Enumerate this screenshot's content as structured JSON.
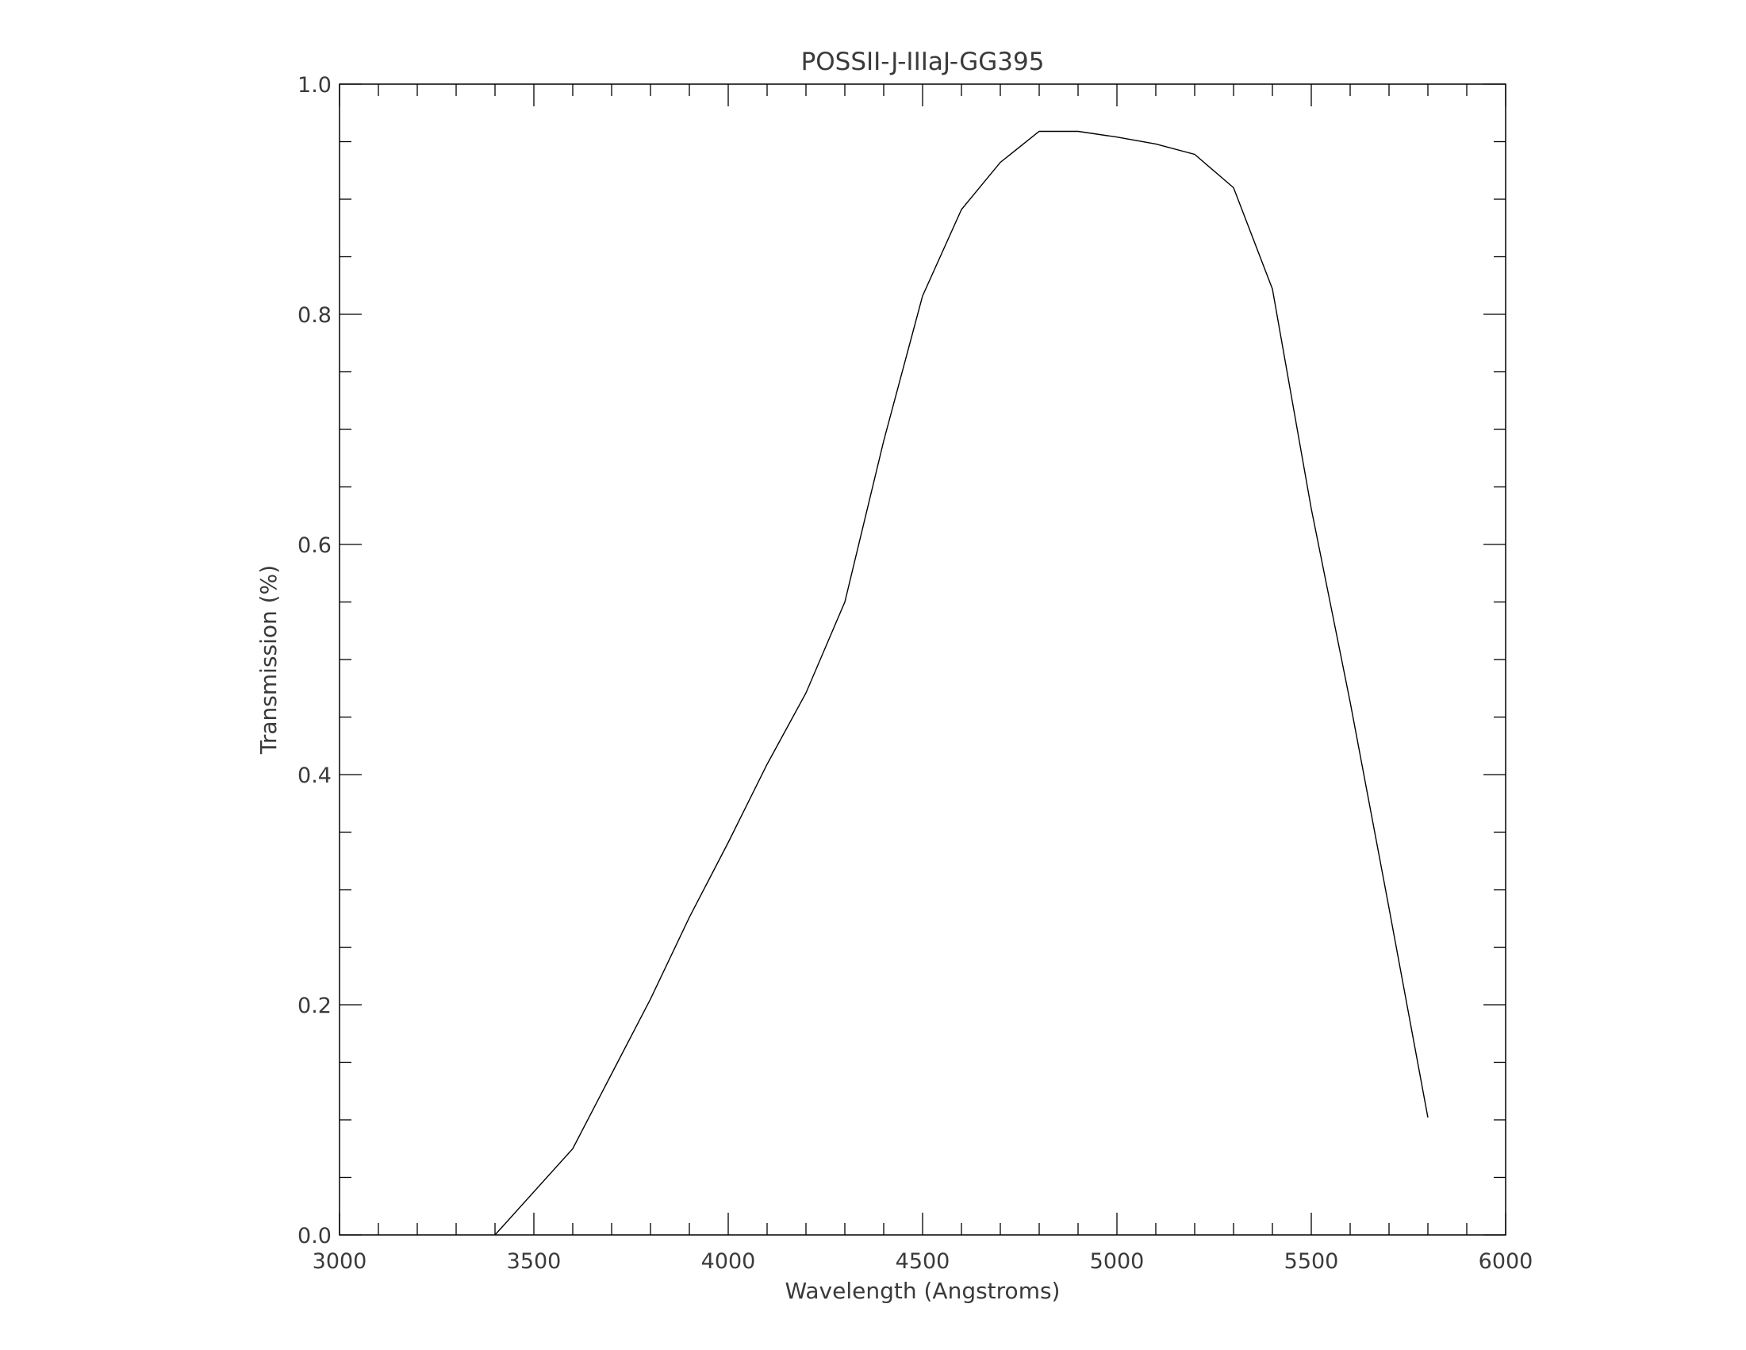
{
  "chart_data": {
    "type": "line",
    "title": "POSSII-J-IIIaJ-GG395",
    "xlabel": "Wavelength (Angstroms)",
    "ylabel": "Transmission (%)",
    "xlim": [
      3000,
      6000
    ],
    "ylim": [
      0.0,
      1.0
    ],
    "x_ticks": [
      "3000",
      "3500",
      "4000",
      "4500",
      "5000",
      "5500",
      "6000"
    ],
    "y_ticks": [
      "0.0",
      "0.2",
      "0.4",
      "0.6",
      "0.8",
      "1.0"
    ],
    "x_minor_step": 100,
    "y_minor_step": 0.05,
    "grid": false,
    "line_color": "#000000",
    "series": [
      {
        "x": [
          3400,
          3600,
          3700,
          3800,
          3900,
          4000,
          4100,
          4200,
          4300,
          4400,
          4500,
          4600,
          4700,
          4800,
          4900,
          5000,
          5100,
          5200,
          5300,
          5400,
          5500,
          5600,
          5700,
          5800
        ],
        "y": [
          0.0,
          0.075,
          0.14,
          0.205,
          0.276,
          0.341,
          0.409,
          0.471,
          0.55,
          0.69,
          0.816,
          0.891,
          0.932,
          0.959,
          0.959,
          0.954,
          0.948,
          0.939,
          0.91,
          0.822,
          0.631,
          0.463,
          0.284,
          0.102
        ]
      }
    ]
  }
}
